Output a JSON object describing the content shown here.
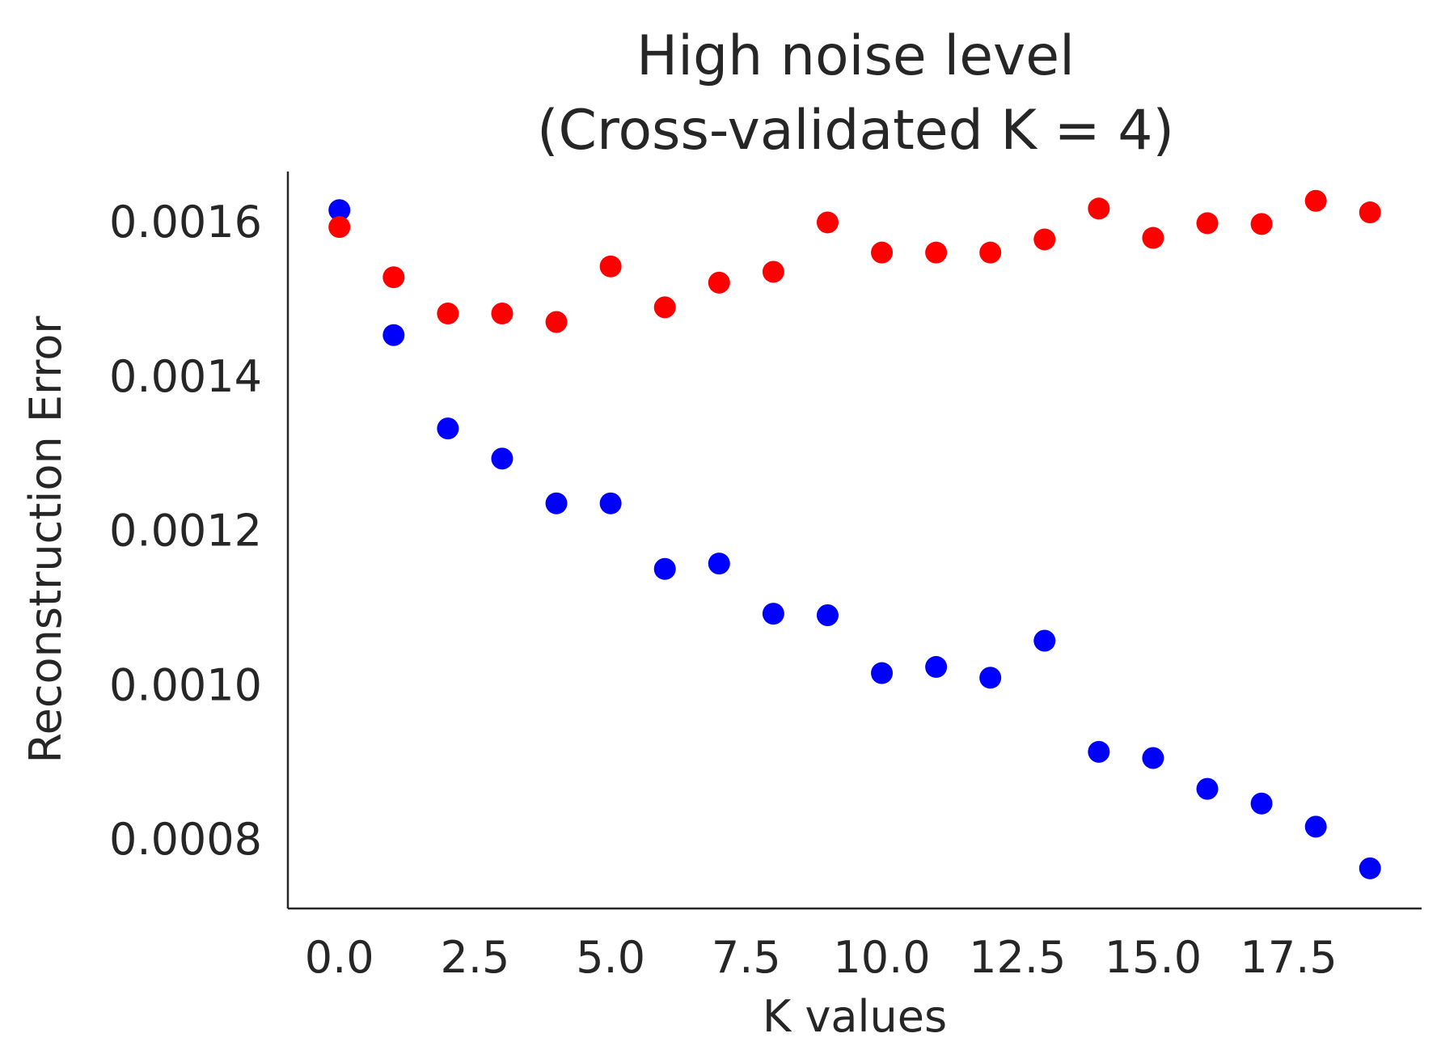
{
  "chart_data": {
    "type": "scatter",
    "title_lines": [
      "High noise level",
      "(Cross-validated K = 4)"
    ],
    "xlabel": "K values",
    "ylabel": "Reconstruction Error",
    "xlim": [
      -0.95,
      19.95
    ],
    "ylim": [
      0.00071,
      0.001665
    ],
    "x_ticks": [
      0.0,
      2.5,
      5.0,
      7.5,
      10.0,
      12.5,
      15.0,
      17.5
    ],
    "x_tick_labels": [
      "0.0",
      "2.5",
      "5.0",
      "7.5",
      "10.0",
      "12.5",
      "15.0",
      "17.5"
    ],
    "y_ticks": [
      0.0008,
      0.001,
      0.0012,
      0.0014,
      0.0016
    ],
    "y_tick_labels": [
      "0.0008",
      "0.0010",
      "0.0012",
      "0.0014",
      "0.0016"
    ],
    "grid": false,
    "series": [
      {
        "color": "#0000ff",
        "x": [
          0,
          1,
          2,
          3,
          4,
          5,
          6,
          7,
          8,
          9,
          10,
          11,
          12,
          13,
          14,
          15,
          16,
          17,
          18,
          19
        ],
        "y": [
          0.001615,
          0.001453,
          0.001332,
          0.001293,
          0.001235,
          0.001235,
          0.00115,
          0.001157,
          0.001092,
          0.00109,
          0.001015,
          0.001023,
          0.001009,
          0.001057,
          0.000913,
          0.000905,
          0.000865,
          0.000846,
          0.000816,
          0.000762
        ]
      },
      {
        "color": "#ff0000",
        "x": [
          0,
          1,
          2,
          3,
          4,
          5,
          6,
          7,
          8,
          9,
          10,
          11,
          12,
          13,
          14,
          15,
          16,
          17,
          18,
          19
        ],
        "y": [
          0.001593,
          0.001528,
          0.001481,
          0.001481,
          0.00147,
          0.001542,
          0.001489,
          0.001521,
          0.001535,
          0.001599,
          0.00156,
          0.00156,
          0.00156,
          0.001577,
          0.001617,
          0.001579,
          0.001598,
          0.001597,
          0.001627,
          0.001612
        ]
      }
    ]
  }
}
